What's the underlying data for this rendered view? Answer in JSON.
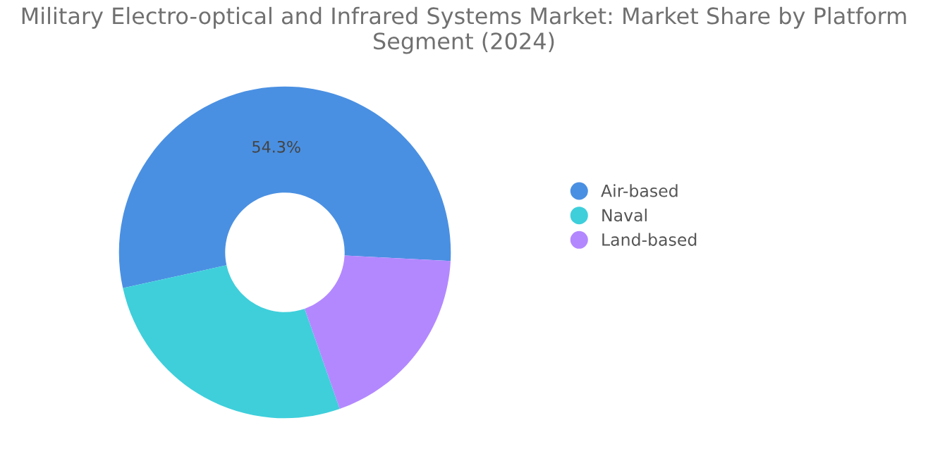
{
  "chart_data": {
    "type": "donut",
    "title": "Military Electro-optical and Infrared Systems Market: Market Share by Platform Segment (2024)",
    "categories": [
      "Air-based",
      "Naval",
      "Land-based"
    ],
    "values": [
      54.3,
      26.9,
      18.8
    ],
    "colors": [
      "#4a90e2",
      "#3ecfdb",
      "#b388ff"
    ],
    "value_labels": [
      "54.3%",
      null,
      null
    ],
    "legend": "right"
  }
}
